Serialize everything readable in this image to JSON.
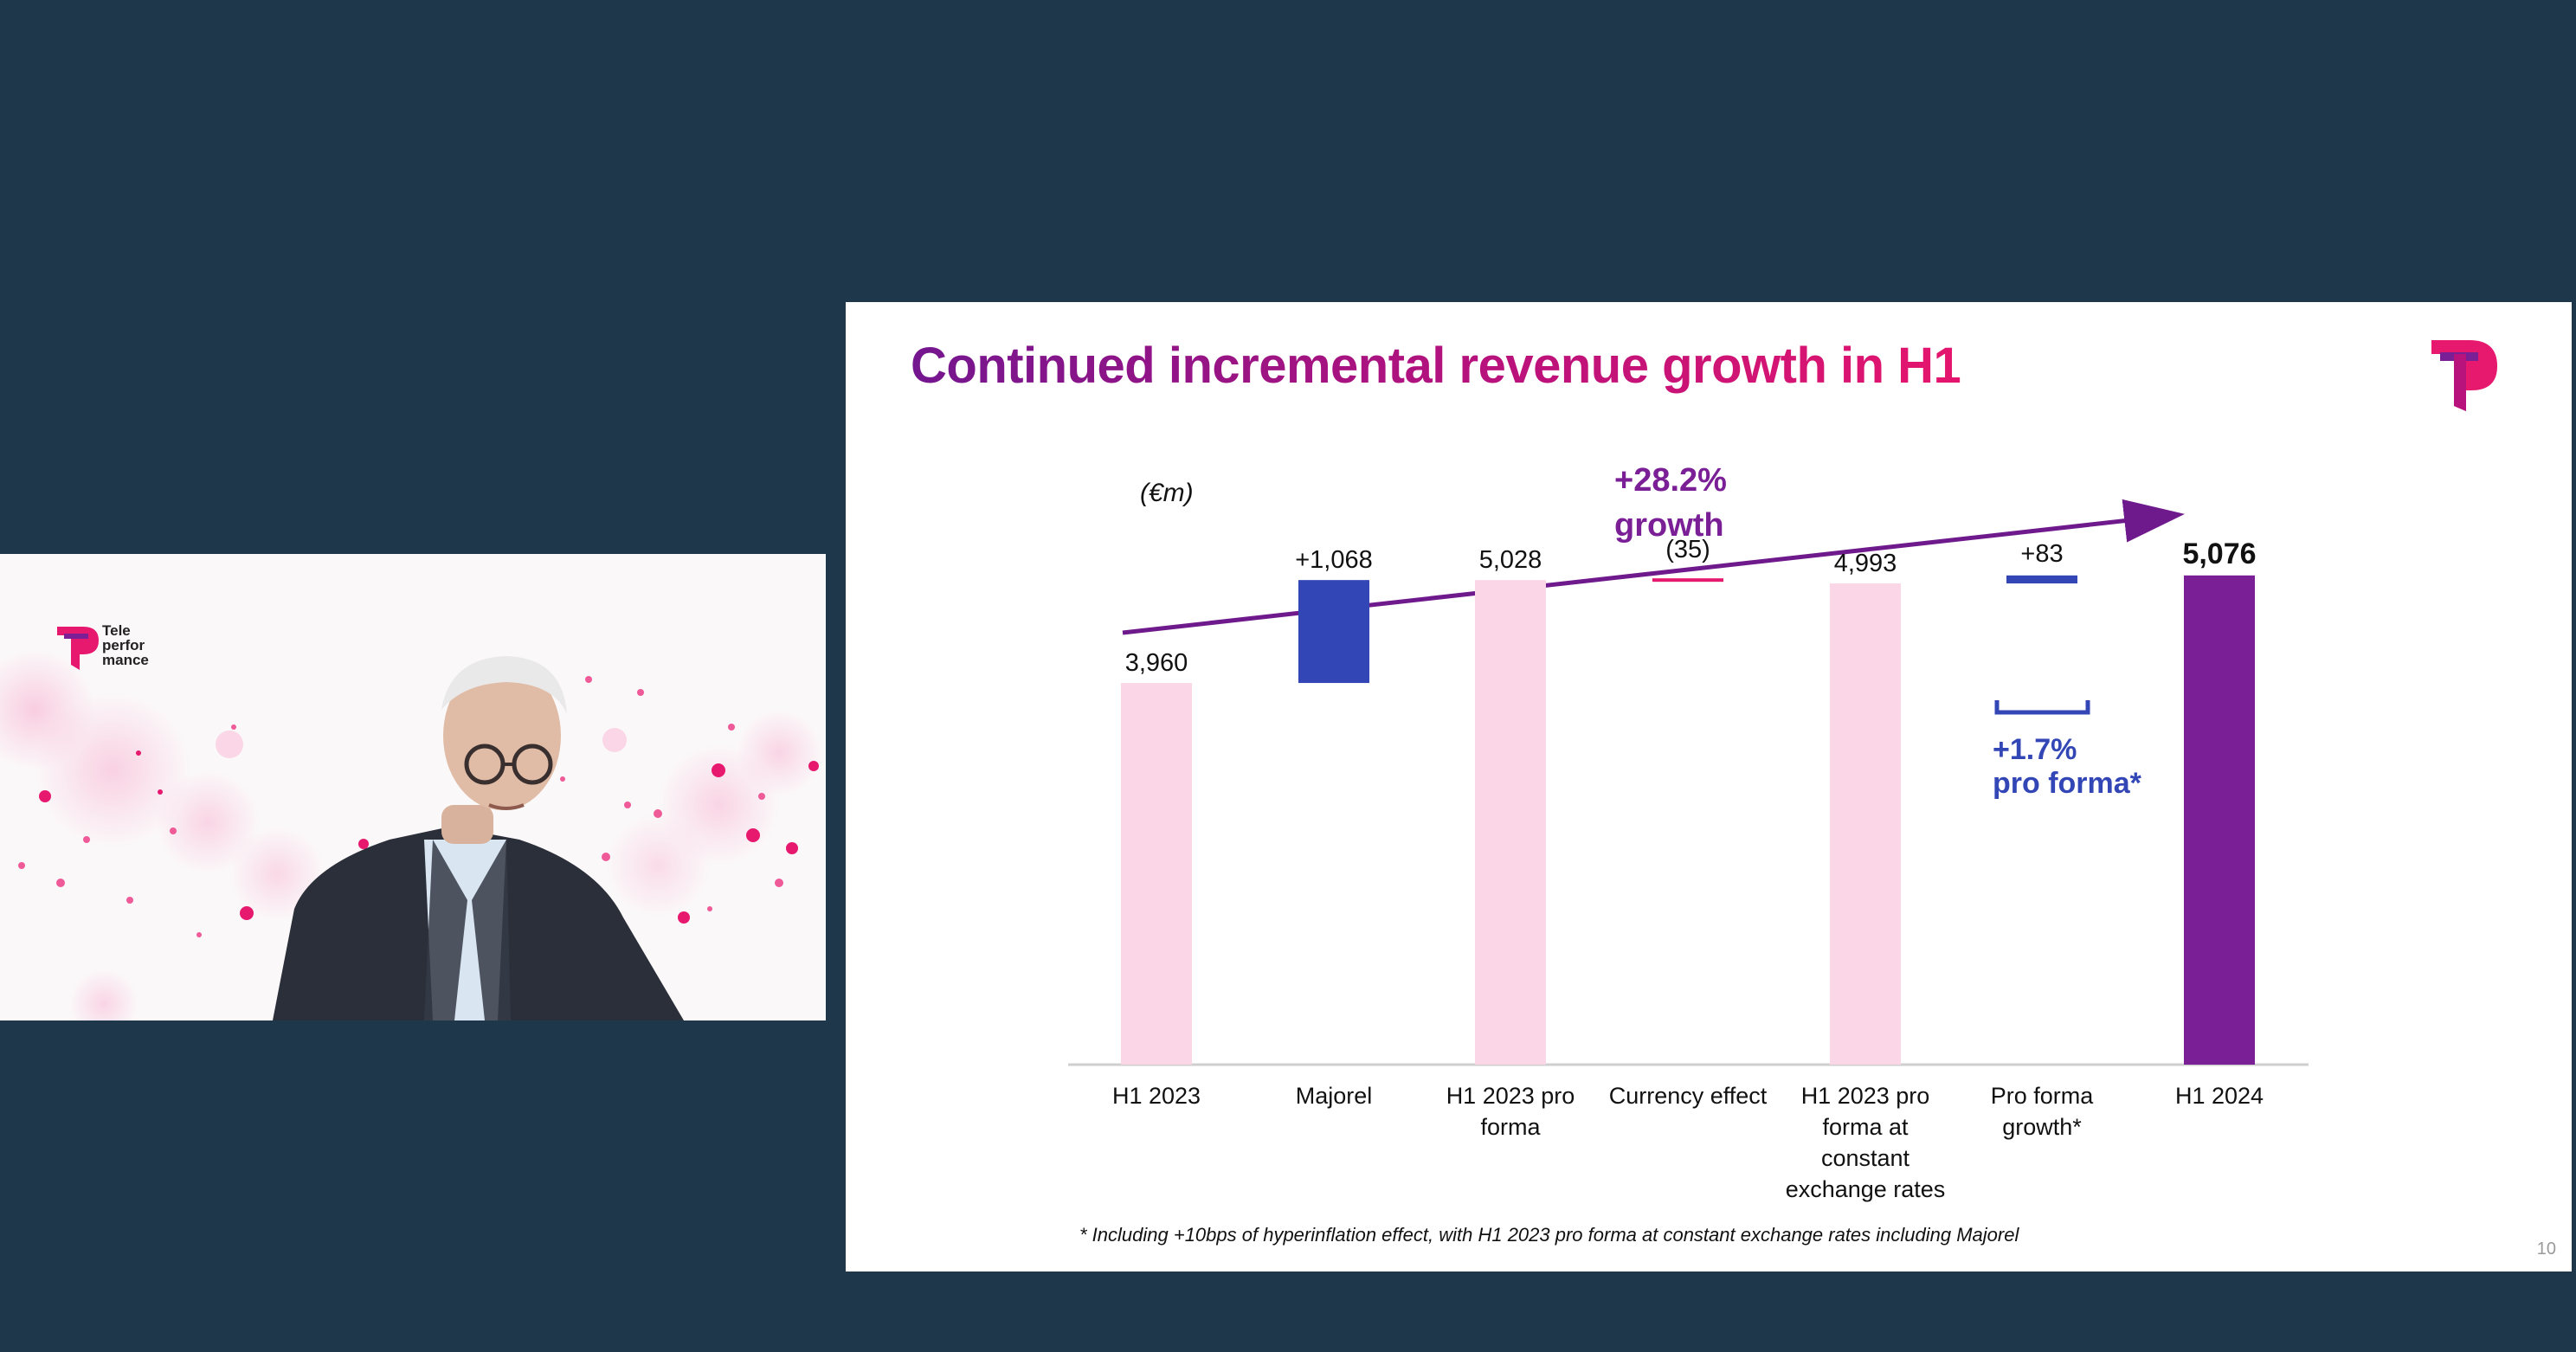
{
  "video": {
    "logo_lines": [
      "Tele",
      "perfor",
      "mance"
    ]
  },
  "slide": {
    "title": "Continued incremental revenue growth in H1",
    "unit_label": "(€m)",
    "growth_label_line1": "+28.2%",
    "growth_label_line2": "growth",
    "pro_forma_label_line1": "+1.7%",
    "pro_forma_label_line2": "pro forma*",
    "footnote": "* Including +10bps of hyperinflation effect, with H1 2023 pro forma at constant exchange rates including Majorel",
    "page_number": "10"
  },
  "colors": {
    "background": "#1f374a",
    "light_pink": "#fbd6e6",
    "blue": "#3346b6",
    "magenta": "#e6196f",
    "purple": "#7a1f96",
    "growth_arrow": "#6f1a8c"
  },
  "chart_data": {
    "type": "bar",
    "subtype": "waterfall",
    "unit": "€m",
    "categories": [
      "H1 2023",
      "Majorel",
      "H1 2023 pro forma",
      "Currency effect",
      "H1 2023 pro forma at constant exchange rates",
      "Pro forma growth*",
      "H1 2024"
    ],
    "category_lines": [
      [
        "H1 2023"
      ],
      [
        "Majorel"
      ],
      [
        "H1 2023 pro",
        "forma"
      ],
      [
        "Currency effect"
      ],
      [
        "H1 2023 pro",
        "forma at",
        "constant",
        "exchange rates"
      ],
      [
        "Pro forma",
        "growth*"
      ],
      [
        "H1 2024"
      ]
    ],
    "values": [
      3960,
      1068,
      5028,
      -35,
      4993,
      83,
      5076
    ],
    "bar_kind": [
      "total",
      "delta",
      "total",
      "delta",
      "total",
      "delta",
      "total"
    ],
    "data_labels": [
      "3,960",
      "+1,068",
      "5,028",
      "(35)",
      "4,993",
      "+83",
      "5,076"
    ],
    "bar_colors": [
      "#fbd6e6",
      "#3346b6",
      "#fbd6e6",
      "#e6196f",
      "#fbd6e6",
      "#3346b6",
      "#7a1f96"
    ],
    "ylim": [
      0,
      5200
    ],
    "grid": false,
    "legend": "none"
  }
}
